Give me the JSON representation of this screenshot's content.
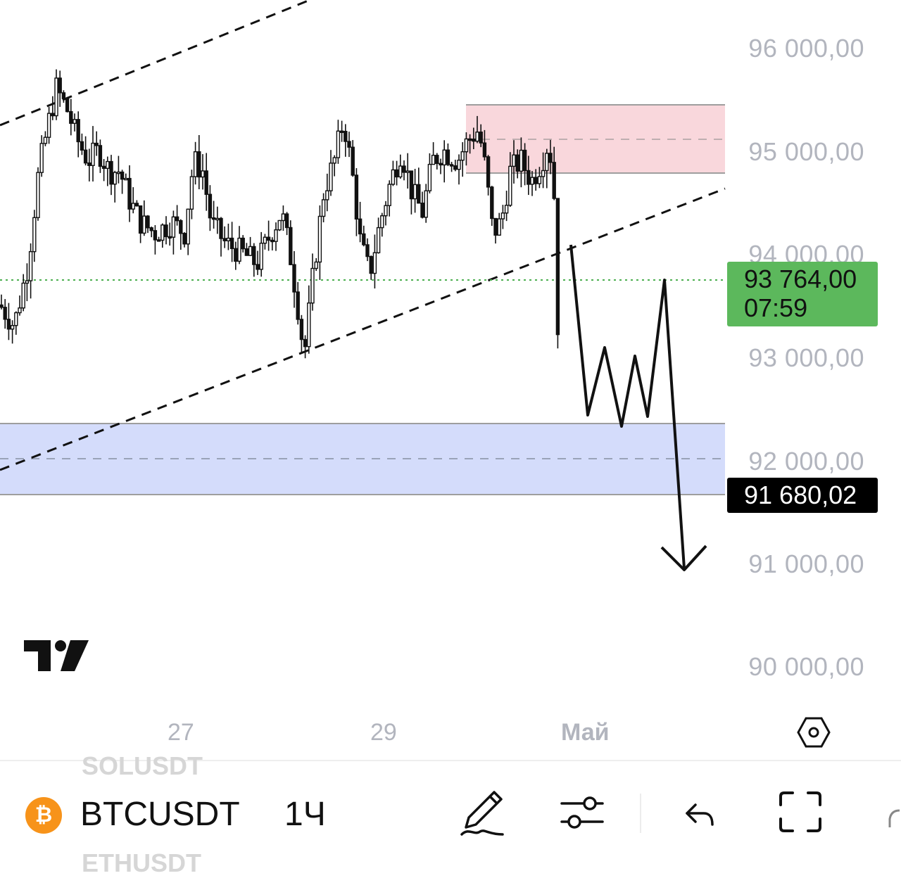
{
  "chart_data": {
    "type": "candlestick",
    "symbol": "BTCUSDT",
    "interval": "1Ч",
    "y_ticks": [
      "96 000,00",
      "95 000,00",
      "94 000,00",
      "93 000,00",
      "92 000,00",
      "91 000,00",
      "90 000,00"
    ],
    "x_ticks": [
      "27",
      "29",
      "Май"
    ],
    "last_price": {
      "value": "93 764,00",
      "countdown": "07:59",
      "color": "#5cb85c"
    },
    "crosshair_price": "91 680,02",
    "price_line_color": "#4caf50",
    "zones": [
      {
        "name": "supply",
        "from": 94800,
        "to": 95450,
        "color": "#f9d7dc"
      },
      {
        "name": "demand",
        "from": 91680,
        "to": 92350,
        "color": "#d4dcfb"
      }
    ],
    "trend_lines": "parallel ascending channel (dashed)",
    "projection": "zigzag then down arrow toward ~91 000",
    "grid": true
  },
  "branding": {
    "logo": "tradingview-logo"
  },
  "bottom_bar": {
    "symbol": "BTCUSDT",
    "interval": "1Ч",
    "prev_symbol": "SOLUSDT",
    "next_symbol": "ETHUSDT",
    "coin_icon": "bitcoin-icon",
    "tools": [
      "pencil-icon",
      "sliders-icon",
      "undo-icon",
      "fullscreen-icon"
    ]
  }
}
